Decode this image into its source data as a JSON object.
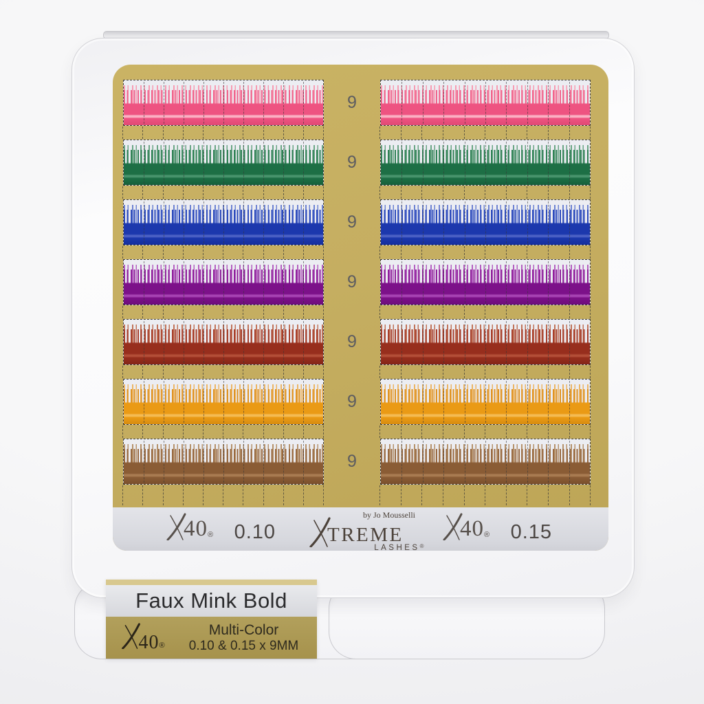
{
  "palette": {
    "gold_color": "#c5ae61",
    "rows": [
      {
        "name": "pink",
        "size_label": "9",
        "streak": "#f0638c",
        "tip": "#f79bb2",
        "solid": "#ee5381",
        "line": "#fbb3c5",
        "dark": "#e04a74"
      },
      {
        "name": "green",
        "size_label": "9",
        "streak": "#2e8054",
        "tip": "#69a584",
        "solid": "#1d6f45",
        "line": "#49946d",
        "dark": "#16603a"
      },
      {
        "name": "blue",
        "size_label": "9",
        "streak": "#2b49bb",
        "tip": "#6d82d2",
        "solid": "#1c38ad",
        "line": "#4b61c4",
        "dark": "#152f9d"
      },
      {
        "name": "purple",
        "size_label": "9",
        "streak": "#8e1f9a",
        "tip": "#b45fc0",
        "solid": "#7c1189",
        "line": "#a844b4",
        "dark": "#6d0c7a"
      },
      {
        "name": "red",
        "size_label": "9",
        "streak": "#a63d2a",
        "tip": "#c07258",
        "solid": "#972e1d",
        "line": "#b44f38",
        "dark": "#842518"
      },
      {
        "name": "orange",
        "size_label": "9",
        "streak": "#df9221",
        "tip": "#ecb564",
        "solid": "#ea9a15",
        "line": "#f4bc55",
        "dark": "#d68c10"
      },
      {
        "name": "brown",
        "size_label": "9",
        "streak": "#97683f",
        "tip": "#b5916a",
        "solid": "#8a5c35",
        "line": "#a97c52",
        "dark": "#7b4f2c"
      }
    ]
  },
  "footer_strip": {
    "left": {
      "brand_x": "X",
      "brand_num": "40",
      "reg": "®",
      "value": "0.10"
    },
    "center": {
      "byline": "by Jo Mousselli",
      "brand_x": "X",
      "brand_rest": "TREME",
      "sub": "LASHES",
      "reg": "®"
    },
    "right": {
      "brand_x": "X",
      "brand_num": "40",
      "reg": "®",
      "value": "0.15"
    }
  },
  "label": {
    "title": "Faux Mink Bold",
    "brand_x": "X",
    "brand_num": "40",
    "reg": "®",
    "line1": "Multi-Color",
    "line2": "0.10 & 0.15 x 9MM"
  },
  "colors": {
    "panel_gold": "#c5ae61",
    "label_gold": "#a6924c",
    "gold_line": "#d8c88e",
    "silver_strip": "#dadbe1"
  }
}
